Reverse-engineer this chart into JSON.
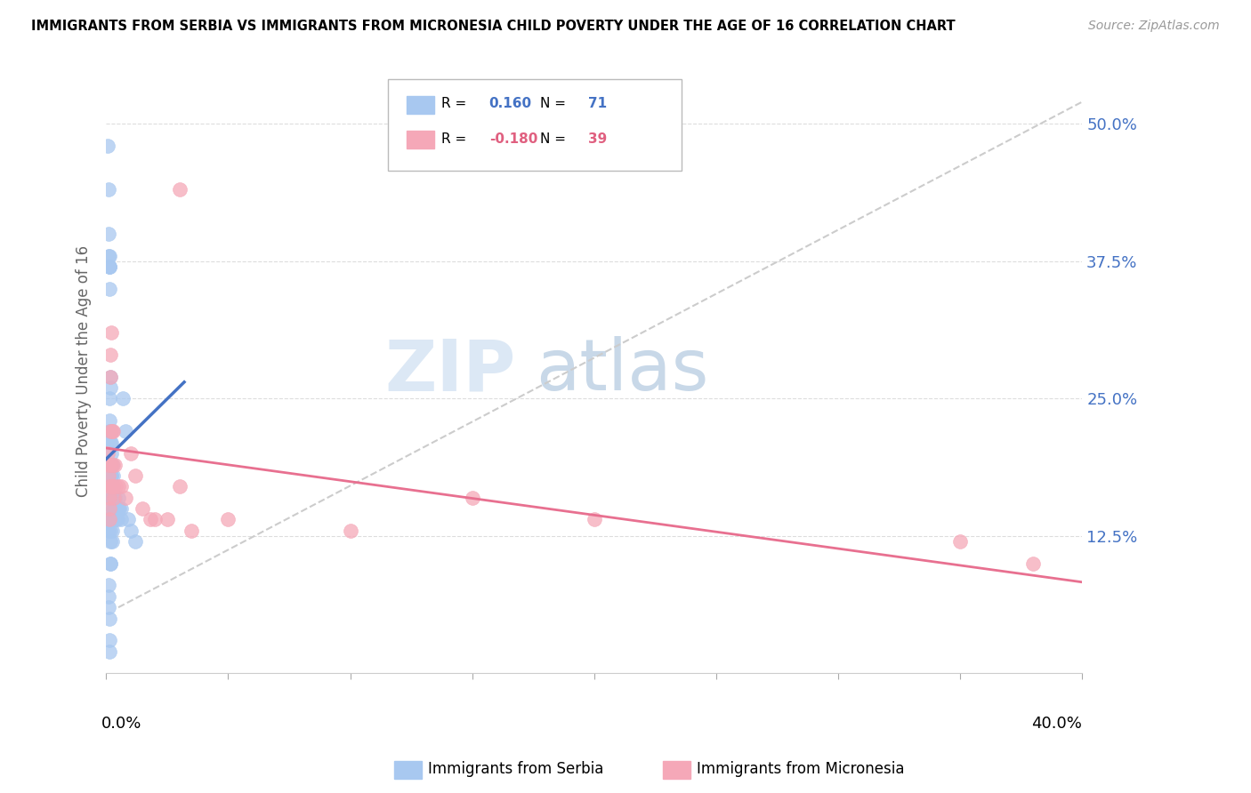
{
  "title": "IMMIGRANTS FROM SERBIA VS IMMIGRANTS FROM MICRONESIA CHILD POVERTY UNDER THE AGE OF 16 CORRELATION CHART",
  "source": "Source: ZipAtlas.com",
  "ylabel": "Child Poverty Under the Age of 16",
  "serbia_color": "#a8c8f0",
  "micronesia_color": "#f5a8b8",
  "serbia_line_color": "#4472c4",
  "micronesia_line_color": "#e87090",
  "diag_color": "#cccccc",
  "grid_color": "#dddddd",
  "serbia_R": 0.16,
  "serbia_N": 71,
  "micronesia_R": -0.18,
  "micronesia_N": 39,
  "xlim": [
    0.0,
    0.4
  ],
  "ylim": [
    0.0,
    0.55
  ],
  "ytick_values": [
    0.125,
    0.25,
    0.375,
    0.5
  ],
  "ytick_labels": [
    "12.5%",
    "25.0%",
    "37.5%",
    "50.0%"
  ],
  "serbia_x": [
    0.0008,
    0.001,
    0.001,
    0.001,
    0.0012,
    0.0012,
    0.0013,
    0.0015,
    0.0015,
    0.0015,
    0.0015,
    0.0015,
    0.0018,
    0.0018,
    0.0018,
    0.0018,
    0.0018,
    0.0018,
    0.002,
    0.002,
    0.002,
    0.002,
    0.002,
    0.0022,
    0.0022,
    0.0022,
    0.0025,
    0.0025,
    0.0025,
    0.0028,
    0.0028,
    0.003,
    0.003,
    0.003,
    0.0032,
    0.0032,
    0.0035,
    0.0035,
    0.004,
    0.004,
    0.0045,
    0.0045,
    0.005,
    0.005,
    0.0055,
    0.006,
    0.006,
    0.007,
    0.008,
    0.009,
    0.01,
    0.012,
    0.0008,
    0.0009,
    0.001,
    0.001,
    0.0011,
    0.0012,
    0.0013,
    0.0014,
    0.0015,
    0.0016,
    0.0017,
    0.0018,
    0.0019,
    0.002,
    0.0021,
    0.0022,
    0.0023,
    0.0024,
    0.0025
  ],
  "serbia_y": [
    0.48,
    0.44,
    0.4,
    0.38,
    0.37,
    0.37,
    0.35,
    0.38,
    0.37,
    0.25,
    0.23,
    0.22,
    0.27,
    0.26,
    0.22,
    0.21,
    0.19,
    0.17,
    0.22,
    0.21,
    0.19,
    0.18,
    0.16,
    0.22,
    0.2,
    0.18,
    0.19,
    0.17,
    0.16,
    0.17,
    0.16,
    0.18,
    0.16,
    0.15,
    0.16,
    0.15,
    0.16,
    0.15,
    0.15,
    0.14,
    0.15,
    0.14,
    0.16,
    0.15,
    0.15,
    0.14,
    0.15,
    0.25,
    0.22,
    0.14,
    0.13,
    0.12,
    0.14,
    0.13,
    0.08,
    0.07,
    0.06,
    0.05,
    0.03,
    0.02,
    0.14,
    0.13,
    0.12,
    0.1,
    0.1,
    0.15,
    0.16,
    0.17,
    0.14,
    0.13,
    0.12
  ],
  "micronesia_x": [
    0.0008,
    0.001,
    0.001,
    0.0012,
    0.0013,
    0.0015,
    0.0015,
    0.0018,
    0.0018,
    0.0018,
    0.002,
    0.002,
    0.0022,
    0.0025,
    0.0025,
    0.0028,
    0.003,
    0.003,
    0.0032,
    0.0035,
    0.004,
    0.005,
    0.006,
    0.008,
    0.01,
    0.012,
    0.015,
    0.018,
    0.02,
    0.025,
    0.03,
    0.03,
    0.035,
    0.05,
    0.1,
    0.15,
    0.2,
    0.35,
    0.38
  ],
  "micronesia_y": [
    0.2,
    0.19,
    0.18,
    0.17,
    0.16,
    0.15,
    0.14,
    0.29,
    0.27,
    0.22,
    0.19,
    0.17,
    0.31,
    0.22,
    0.17,
    0.19,
    0.22,
    0.17,
    0.16,
    0.19,
    0.17,
    0.17,
    0.17,
    0.16,
    0.2,
    0.18,
    0.15,
    0.14,
    0.14,
    0.14,
    0.44,
    0.17,
    0.13,
    0.14,
    0.13,
    0.16,
    0.14,
    0.12,
    0.1
  ],
  "serbia_line_x": [
    0.0,
    0.032
  ],
  "serbia_line_y": [
    0.195,
    0.265
  ],
  "micronesia_line_x": [
    0.0,
    0.4
  ],
  "micronesia_line_y": [
    0.205,
    0.083
  ],
  "diag_line_x": [
    0.005,
    0.4
  ],
  "diag_line_y": [
    0.06,
    0.52
  ]
}
